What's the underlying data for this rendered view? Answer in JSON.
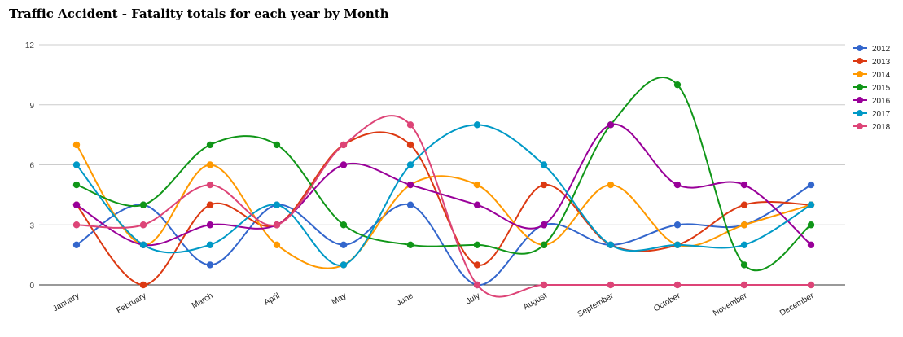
{
  "chart_data": {
    "type": "line",
    "title": "Traffic Accident - Fatality totals for each year by Month",
    "xlabel": "",
    "ylabel": "",
    "categories": [
      "January",
      "February",
      "March",
      "April",
      "May",
      "June",
      "July",
      "August",
      "September",
      "October",
      "November",
      "December"
    ],
    "ylim": [
      0,
      12
    ],
    "yticks": [
      "0",
      "3",
      "6",
      "9",
      "12"
    ],
    "grid": true,
    "smooth": true,
    "legend_position": "right",
    "series": [
      {
        "name": "2012",
        "color": "#3366cc",
        "values": [
          2,
          4,
          1,
          4,
          2,
          4,
          0,
          3,
          2,
          3,
          3,
          5
        ]
      },
      {
        "name": "2013",
        "color": "#dc3912",
        "values": [
          4,
          0,
          4,
          3,
          7,
          7,
          1,
          5,
          2,
          2,
          4,
          4
        ]
      },
      {
        "name": "2014",
        "color": "#ff9900",
        "values": [
          7,
          2,
          6,
          2,
          1,
          5,
          5,
          2,
          5,
          2,
          3,
          4
        ]
      },
      {
        "name": "2015",
        "color": "#109618",
        "values": [
          5,
          4,
          7,
          7,
          3,
          2,
          2,
          2,
          8,
          10,
          1,
          3
        ]
      },
      {
        "name": "2016",
        "color": "#990099",
        "values": [
          4,
          2,
          3,
          3,
          6,
          5,
          4,
          3,
          8,
          5,
          5,
          2
        ]
      },
      {
        "name": "2017",
        "color": "#0099c6",
        "values": [
          6,
          2,
          2,
          4,
          1,
          6,
          8,
          6,
          2,
          2,
          2,
          4
        ]
      },
      {
        "name": "2018",
        "color": "#dd4477",
        "values": [
          3,
          3,
          5,
          3,
          7,
          8,
          0,
          0,
          0,
          0,
          0,
          0
        ]
      }
    ]
  }
}
